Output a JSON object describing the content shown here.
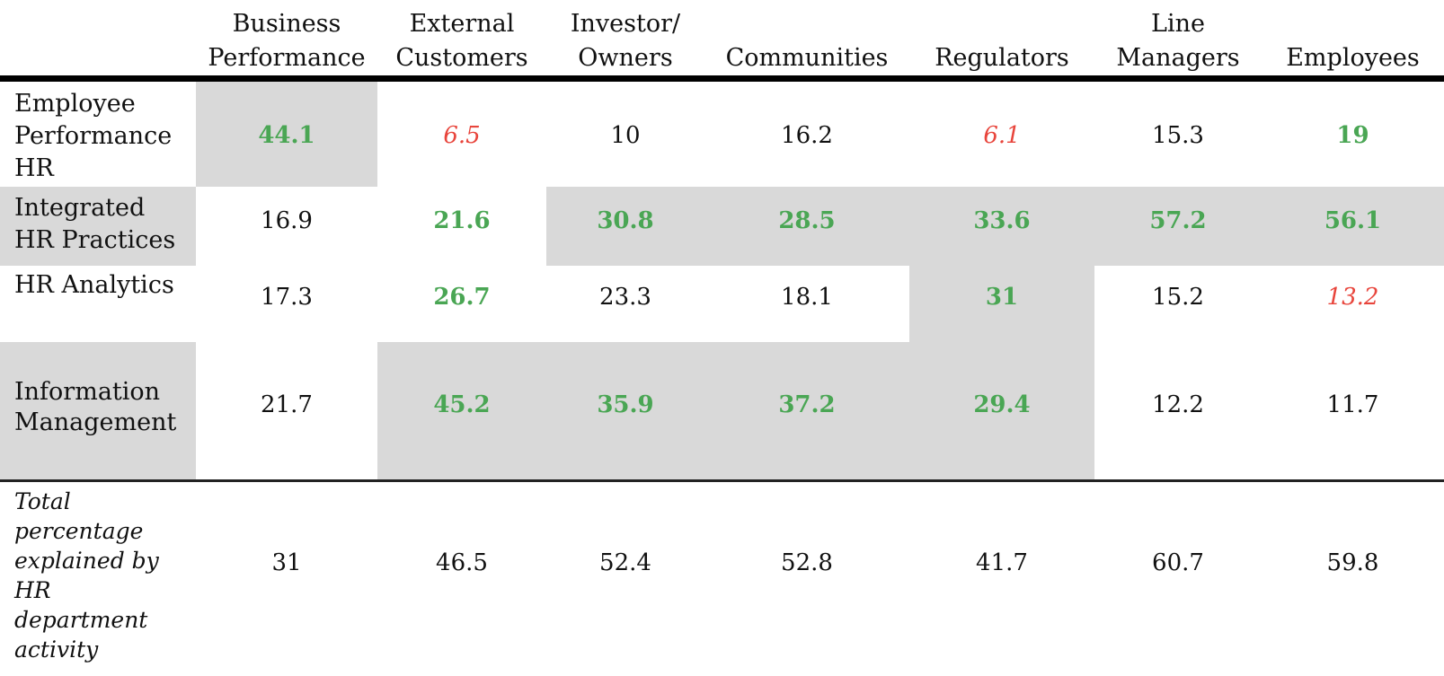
{
  "columns": [
    "Business\nPerformance",
    "External\nCustomers",
    "Investor/\nOwners",
    "Communities",
    "Regulators",
    "Line\nManagers",
    "Employees"
  ],
  "rows": [
    {
      "label": "Employee\nPerformance\nHR",
      "values": [
        "44.1",
        "6.5",
        "10",
        "16.2",
        "6.1",
        "15.3",
        "19"
      ]
    },
    {
      "label": "Integrated\nHR Practices",
      "values": [
        "16.9",
        "21.6",
        "30.8",
        "28.5",
        "33.6",
        "57.2",
        "56.1"
      ]
    },
    {
      "label": "HR Analytics",
      "values": [
        "17.3",
        "26.7",
        "23.3",
        "18.1",
        "31",
        "15.2",
        "13.2"
      ]
    },
    {
      "label": "Information\nManagement",
      "values": [
        "21.7",
        "45.2",
        "35.9",
        "37.2",
        "29.4",
        "12.2",
        "11.7"
      ]
    }
  ],
  "total": {
    "label": "Total\npercentage\nexplained by\nHR\ndepartment\nactivity",
    "values": [
      "31",
      "46.5",
      "52.4",
      "52.8",
      "41.7",
      "60.7",
      "59.8"
    ]
  },
  "colors": {
    "positive": "#4aa654",
    "negative": "#e8453c",
    "shade": "#d9d9d9"
  },
  "cell_styles": [
    [
      "green",
      "red",
      "plain",
      "plain",
      "red",
      "plain",
      "green"
    ],
    [
      "plain",
      "green",
      "green",
      "green",
      "green",
      "green",
      "green"
    ],
    [
      "plain",
      "green",
      "plain",
      "plain",
      "green",
      "plain",
      "red"
    ],
    [
      "plain",
      "green",
      "green",
      "green",
      "green",
      "plain",
      "plain"
    ]
  ]
}
